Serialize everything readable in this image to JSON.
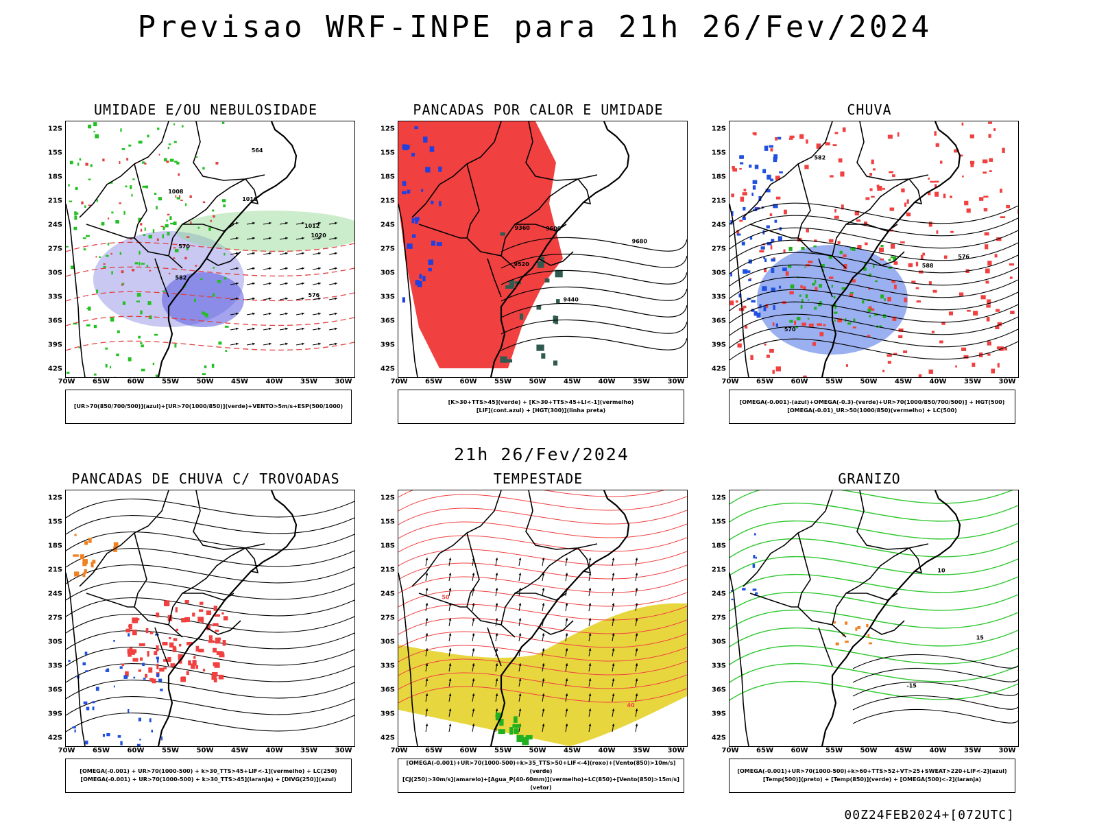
{
  "title": "Previsao WRF-INPE  para 21h 26/Fev/2024",
  "subtitle": "21h 26/Fev/2024",
  "footer": "00Z24FEB2024+[072UTC]",
  "lat_labels": [
    "12S",
    "15S",
    "18S",
    "21S",
    "24S",
    "27S",
    "30S",
    "33S",
    "36S",
    "39S",
    "42S"
  ],
  "lon_labels": [
    "70W",
    "65W",
    "60W",
    "55W",
    "50W",
    "45W",
    "40W",
    "35W",
    "30W"
  ],
  "panels": [
    {
      "title": "UMIDADE E/OU NEBULOSIDADE",
      "legend_line1": "[UR>70(850/700/500)](azul)+[UR>70(1000/850)](verde)+VENTO>5m/s+ESP(500/1000)",
      "legend_line2": "",
      "contour_labels": [
        "1008",
        "1012",
        "1016",
        "1020",
        "570",
        "576",
        "582",
        "564"
      ]
    },
    {
      "title": "PANCADAS POR CALOR E UMIDADE",
      "legend_line1": "[K>30+TTS>45](verde) + [K>30+TTS>45+LI<-1](vermelho)",
      "legend_line2": "[LIF](cont.azul) + [HGT(300)](linha preta)",
      "contour_labels": [
        "9600",
        "9680",
        "9520",
        "9440",
        "9360"
      ]
    },
    {
      "title": "CHUVA",
      "legend_line1": "[OMEGA(-0.001)-(azul)+OMEGA(-0.3)-(verde)+UR>70(1000/850/700/500)] + HGT(500)",
      "legend_line2": "[OMEGA(-0.01)_UR>50(1000/850)(vermelho) + LC(500)",
      "contour_labels": [
        "588",
        "576",
        "570",
        "582"
      ]
    },
    {
      "title": "PANCADAS DE CHUVA C/ TROVOADAS",
      "legend_line1": "[OMEGA(-0.001) + UR>70(1000-500) + k>30_TTS>45+LIF<-1](vermelho) + LC(250)",
      "legend_line2": "[OMEGA(-0.001) + UR>70(1000-500) + k>30_TTS>45](laranja) + [DIVG(250)](azul)",
      "contour_labels": []
    },
    {
      "title": "TEMPESTADE",
      "legend_line1": "[OMEGA(-0.001)+UR>70(1000-500)+k>35_TTS>50+LIF<-4](roxo)+[Vento(850)>10m/s](verde)",
      "legend_line2": "[CJ(250)>30m/s](amarelo)+[Agua_P(40-60mm)](vermelho)+LC(850)+[Vento(850)>15m/s](vetor)",
      "contour_labels": [
        "40",
        "50"
      ]
    },
    {
      "title": "GRANIZO",
      "legend_line1": "[OMEGA(-0.001)+UR>70(1000-500)+k>60+TTS>52+VT>25+SWEAT>220+LIF<-2](azul)",
      "legend_line2": "[Temp(500)](preto) + [Temp(850)](verde) + [OMEGA(500)<-2](laranja)",
      "contour_labels": [
        "15",
        "-15",
        "10"
      ]
    }
  ]
}
